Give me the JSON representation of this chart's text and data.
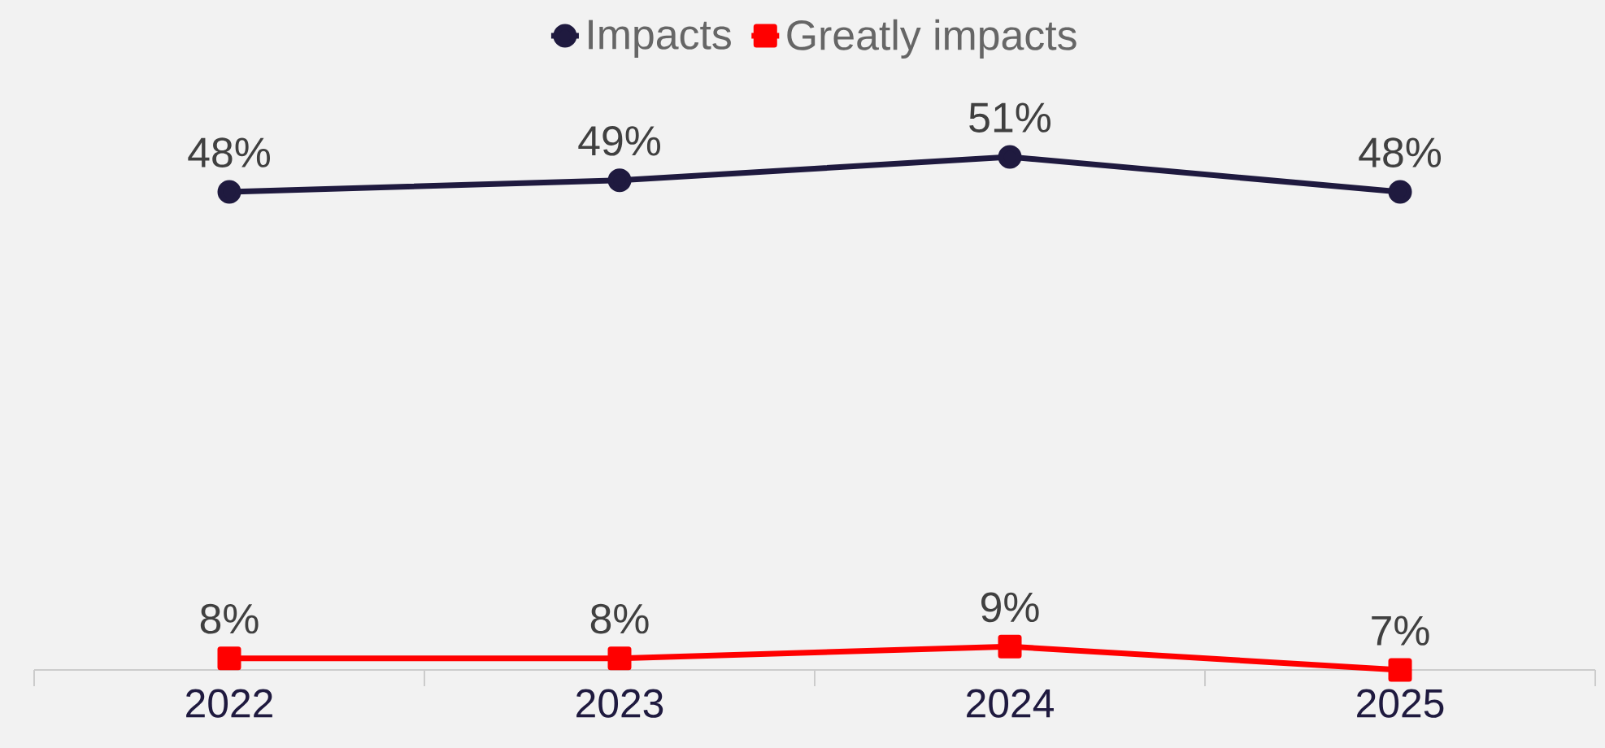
{
  "chart_data": {
    "type": "line",
    "categories": [
      "2022",
      "2023",
      "2024",
      "2025"
    ],
    "series": [
      {
        "name": "Impacts",
        "color": "#1f1a3f",
        "marker": "circle",
        "values": [
          48,
          49,
          51,
          48
        ],
        "value_labels": [
          "48%",
          "49%",
          "51%",
          "48%"
        ]
      },
      {
        "name": "Greatly impacts",
        "color": "#ff0000",
        "marker": "square",
        "values": [
          8,
          8,
          9,
          7
        ],
        "value_labels": [
          "8%",
          "8%",
          "9%",
          "7%"
        ]
      }
    ],
    "tick_labels": "x",
    "grid": false,
    "legend": "top",
    "line_style": "solid"
  }
}
